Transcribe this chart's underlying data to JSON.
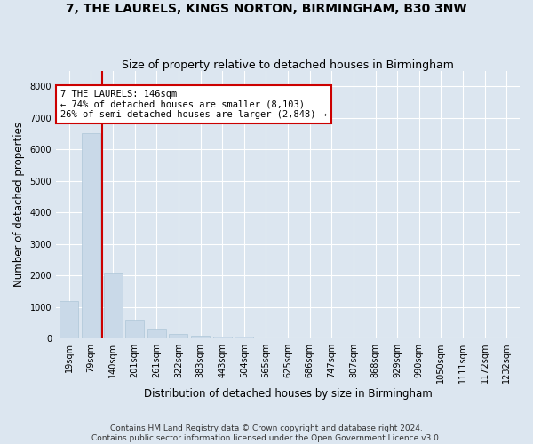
{
  "title": "7, THE LAURELS, KINGS NORTON, BIRMINGHAM, B30 3NW",
  "subtitle": "Size of property relative to detached houses in Birmingham",
  "xlabel": "Distribution of detached houses by size in Birmingham",
  "ylabel": "Number of detached properties",
  "footer_line1": "Contains HM Land Registry data © Crown copyright and database right 2024.",
  "footer_line2": "Contains public sector information licensed under the Open Government Licence v3.0.",
  "bar_color": "#c9d9e8",
  "bar_edge_color": "#aec6d8",
  "vline_color": "#cc0000",
  "vline_position": 1.5,
  "annotation_text": "7 THE LAURELS: 146sqm\n← 74% of detached houses are smaller (8,103)\n26% of semi-detached houses are larger (2,848) →",
  "annotation_box_facecolor": "#ffffff",
  "annotation_box_edgecolor": "#cc0000",
  "categories": [
    "19sqm",
    "79sqm",
    "140sqm",
    "201sqm",
    "261sqm",
    "322sqm",
    "383sqm",
    "443sqm",
    "504sqm",
    "565sqm",
    "625sqm",
    "686sqm",
    "747sqm",
    "807sqm",
    "868sqm",
    "929sqm",
    "990sqm",
    "1050sqm",
    "1111sqm",
    "1172sqm",
    "1232sqm"
  ],
  "values": [
    1200,
    6500,
    2100,
    600,
    280,
    140,
    80,
    60,
    55,
    0,
    0,
    0,
    0,
    0,
    0,
    0,
    0,
    0,
    0,
    0,
    0
  ],
  "ylim": [
    0,
    8500
  ],
  "yticks": [
    0,
    1000,
    2000,
    3000,
    4000,
    5000,
    6000,
    7000,
    8000
  ],
  "bg_color": "#dce6f0",
  "grid_color": "#ffffff",
  "title_fontsize": 10,
  "subtitle_fontsize": 9,
  "tick_fontsize": 7,
  "axis_label_fontsize": 8.5,
  "annotation_fontsize": 7.5,
  "footer_fontsize": 6.5
}
